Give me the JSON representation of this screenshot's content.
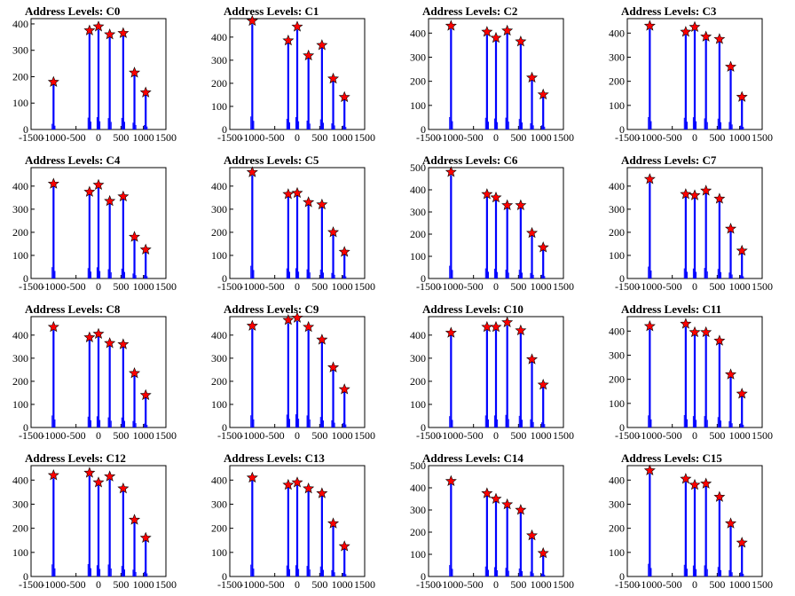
{
  "colors": {
    "bars": "#0000ff",
    "markers": "#ff0000",
    "marker_stroke": "#000000",
    "axes": "#000000",
    "background": "#ffffff"
  },
  "chart_data": [
    {
      "type": "bar",
      "title": "Address Levels: C0",
      "xlim": [
        -1500,
        1500
      ],
      "ylim": [
        0,
        420
      ],
      "xticks": [
        "-1500",
        "-1000",
        "-500",
        "0",
        "500",
        "1000",
        "1500"
      ],
      "yticks": [
        "0",
        "100",
        "200",
        "300",
        "400"
      ],
      "levels": [
        -1000,
        -200,
        0,
        250,
        550,
        800,
        1050
      ],
      "peaks": [
        180,
        375,
        390,
        360,
        365,
        215,
        140
      ]
    },
    {
      "type": "bar",
      "title": "Address Levels: C1",
      "xlim": [
        -1500,
        1500
      ],
      "ylim": [
        0,
        480
      ],
      "xticks": [
        "-1500",
        "-1000",
        "-500",
        "0",
        "500",
        "1000",
        "1500"
      ],
      "yticks": [
        "0",
        "100",
        "200",
        "300",
        "400"
      ],
      "levels": [
        -1000,
        -200,
        0,
        250,
        550,
        800,
        1050
      ],
      "peaks": [
        470,
        385,
        445,
        320,
        365,
        220,
        140
      ]
    },
    {
      "type": "bar",
      "title": "Address Levels: C2",
      "xlim": [
        -1500,
        1500
      ],
      "ylim": [
        0,
        460
      ],
      "xticks": [
        "-1500",
        "-1000",
        "-500",
        "0",
        "500",
        "1000",
        "1500"
      ],
      "yticks": [
        "0",
        "100",
        "200",
        "300",
        "400"
      ],
      "levels": [
        -1000,
        -200,
        0,
        250,
        550,
        800,
        1050
      ],
      "peaks": [
        430,
        405,
        380,
        410,
        365,
        215,
        145
      ]
    },
    {
      "type": "bar",
      "title": "Address Levels: C3",
      "xlim": [
        -1500,
        1500
      ],
      "ylim": [
        0,
        460
      ],
      "xticks": [
        "-1500",
        "-1000",
        "-500",
        "0",
        "500",
        "1000",
        "1500"
      ],
      "yticks": [
        "0",
        "100",
        "200",
        "300",
        "400"
      ],
      "levels": [
        -1000,
        -200,
        0,
        250,
        550,
        800,
        1050
      ],
      "peaks": [
        430,
        405,
        425,
        385,
        375,
        260,
        135
      ]
    },
    {
      "type": "bar",
      "title": "Address Levels: C4",
      "xlim": [
        -1500,
        1500
      ],
      "ylim": [
        0,
        480
      ],
      "xticks": [
        "-1500",
        "-1000",
        "-500",
        "0",
        "500",
        "1000",
        "1500"
      ],
      "yticks": [
        "0",
        "100",
        "200",
        "300",
        "400"
      ],
      "levels": [
        -1000,
        -200,
        0,
        250,
        550,
        800,
        1050
      ],
      "peaks": [
        410,
        375,
        405,
        335,
        355,
        180,
        125
      ]
    },
    {
      "type": "bar",
      "title": "Address Levels: C5",
      "xlim": [
        -1500,
        1500
      ],
      "ylim": [
        0,
        480
      ],
      "xticks": [
        "-1500",
        "-1000",
        "-500",
        "0",
        "500",
        "1000",
        "1500"
      ],
      "yticks": [
        "0",
        "100",
        "200",
        "300",
        "400"
      ],
      "levels": [
        -1000,
        -200,
        0,
        250,
        550,
        800,
        1050
      ],
      "peaks": [
        460,
        365,
        370,
        330,
        320,
        200,
        115
      ]
    },
    {
      "type": "bar",
      "title": "Address Levels: C6",
      "xlim": [
        -1500,
        1500
      ],
      "ylim": [
        0,
        500
      ],
      "xticks": [
        "-1500",
        "-1000",
        "-500",
        "0",
        "500",
        "1000",
        "1500"
      ],
      "yticks": [
        "0",
        "100",
        "200",
        "300",
        "400",
        "500"
      ],
      "levels": [
        -1000,
        -200,
        0,
        250,
        550,
        800,
        1050
      ],
      "peaks": [
        480,
        380,
        365,
        330,
        330,
        205,
        140
      ]
    },
    {
      "type": "bar",
      "title": "Address Levels: C7",
      "xlim": [
        -1500,
        1500
      ],
      "ylim": [
        0,
        480
      ],
      "xticks": [
        "-1500",
        "-1000",
        "-500",
        "0",
        "500",
        "1000",
        "1500"
      ],
      "yticks": [
        "0",
        "100",
        "200",
        "300",
        "400"
      ],
      "levels": [
        -1000,
        -200,
        0,
        250,
        550,
        800,
        1050
      ],
      "peaks": [
        430,
        365,
        360,
        380,
        345,
        215,
        120
      ]
    },
    {
      "type": "bar",
      "title": "Address Levels: C8",
      "xlim": [
        -1500,
        1500
      ],
      "ylim": [
        0,
        480
      ],
      "xticks": [
        "-1500",
        "-1000",
        "-500",
        "0",
        "500",
        "1000",
        "1500"
      ],
      "yticks": [
        "0",
        "100",
        "200",
        "300",
        "400"
      ],
      "levels": [
        -1000,
        -200,
        0,
        250,
        550,
        800,
        1050
      ],
      "peaks": [
        435,
        390,
        405,
        365,
        360,
        235,
        140
      ]
    },
    {
      "type": "bar",
      "title": "Address Levels: C9",
      "xlim": [
        -1500,
        1500
      ],
      "ylim": [
        0,
        480
      ],
      "xticks": [
        "-1500",
        "-1000",
        "-500",
        "0",
        "500",
        "1000",
        "1500"
      ],
      "yticks": [
        "0",
        "100",
        "200",
        "300",
        "400"
      ],
      "levels": [
        -1000,
        -200,
        0,
        250,
        550,
        800,
        1050
      ],
      "peaks": [
        440,
        465,
        475,
        435,
        380,
        260,
        165
      ]
    },
    {
      "type": "bar",
      "title": "Address Levels: C10",
      "xlim": [
        -1500,
        1500
      ],
      "ylim": [
        0,
        480
      ],
      "xticks": [
        "-1500",
        "-1000",
        "-500",
        "0",
        "500",
        "1000",
        "1500"
      ],
      "yticks": [
        "0",
        "100",
        "200",
        "300",
        "400"
      ],
      "levels": [
        -1000,
        -200,
        0,
        250,
        550,
        800,
        1050
      ],
      "peaks": [
        410,
        435,
        435,
        455,
        420,
        295,
        185
      ]
    },
    {
      "type": "bar",
      "title": "Address Levels: C11",
      "xlim": [
        -1500,
        1500
      ],
      "ylim": [
        0,
        460
      ],
      "xticks": [
        "-1500",
        "-1000",
        "-500",
        "0",
        "500",
        "1000",
        "1500"
      ],
      "yticks": [
        "0",
        "100",
        "200",
        "300",
        "400"
      ],
      "levels": [
        -1000,
        -200,
        0,
        250,
        550,
        800,
        1050
      ],
      "peaks": [
        420,
        430,
        395,
        395,
        360,
        220,
        140
      ]
    },
    {
      "type": "bar",
      "title": "Address Levels: C12",
      "xlim": [
        -1500,
        1500
      ],
      "ylim": [
        0,
        460
      ],
      "xticks": [
        "-1500",
        "-1000",
        "-500",
        "0",
        "500",
        "1000",
        "1500"
      ],
      "yticks": [
        "0",
        "100",
        "200",
        "300",
        "400"
      ],
      "levels": [
        -1000,
        -200,
        0,
        250,
        550,
        800,
        1050
      ],
      "peaks": [
        420,
        430,
        390,
        415,
        365,
        235,
        160
      ]
    },
    {
      "type": "bar",
      "title": "Address Levels: C13",
      "xlim": [
        -1500,
        1500
      ],
      "ylim": [
        0,
        460
      ],
      "xticks": [
        "-1500",
        "-1000",
        "-500",
        "0",
        "500",
        "1000",
        "1500"
      ],
      "yticks": [
        "0",
        "100",
        "200",
        "300",
        "400"
      ],
      "levels": [
        -1000,
        -200,
        0,
        250,
        550,
        800,
        1050
      ],
      "peaks": [
        410,
        380,
        390,
        365,
        345,
        220,
        125
      ]
    },
    {
      "type": "bar",
      "title": "Address Levels: C14",
      "xlim": [
        -1500,
        1500
      ],
      "ylim": [
        0,
        500
      ],
      "xticks": [
        "-1500",
        "-1000",
        "-500",
        "0",
        "500",
        "1000",
        "1500"
      ],
      "yticks": [
        "0",
        "100",
        "200",
        "300",
        "400",
        "500"
      ],
      "levels": [
        -1000,
        -200,
        0,
        250,
        550,
        800,
        1050
      ],
      "peaks": [
        430,
        375,
        350,
        325,
        300,
        185,
        105
      ]
    },
    {
      "type": "bar",
      "title": "Address Levels: C15",
      "xlim": [
        -1500,
        1500
      ],
      "ylim": [
        0,
        460
      ],
      "xticks": [
        "-1500",
        "-1000",
        "-500",
        "0",
        "500",
        "1000",
        "1500"
      ],
      "yticks": [
        "0",
        "100",
        "200",
        "300",
        "400"
      ],
      "levels": [
        -1000,
        -200,
        0,
        250,
        550,
        800,
        1050
      ],
      "peaks": [
        440,
        405,
        380,
        385,
        330,
        220,
        140
      ]
    }
  ]
}
